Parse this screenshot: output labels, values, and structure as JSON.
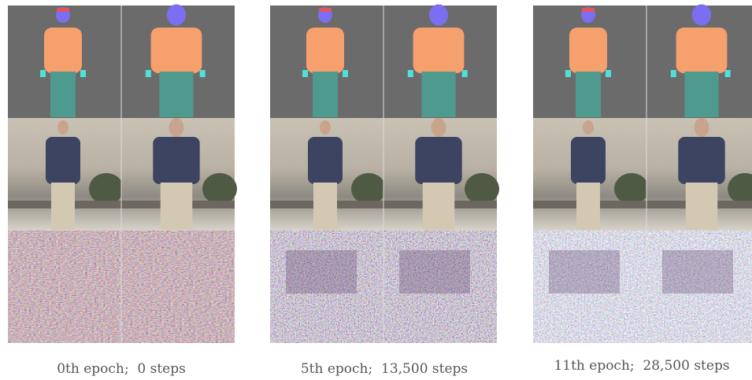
{
  "panels": [
    {
      "caption": "0th epoch;  0 steps"
    },
    {
      "caption": "5th epoch;  13,500 steps"
    },
    {
      "caption": "11th epoch;  28,500 steps"
    }
  ]
}
